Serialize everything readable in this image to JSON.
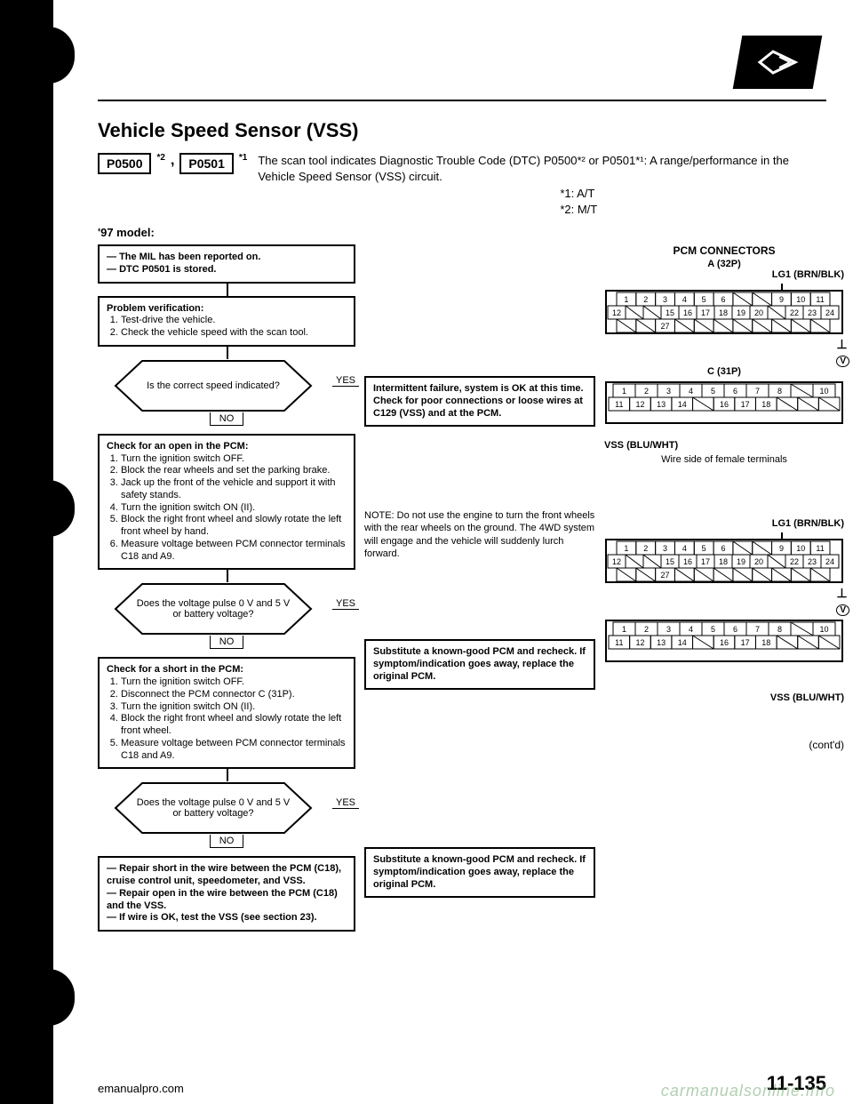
{
  "header": {
    "title": "Vehicle Speed Sensor (VSS)",
    "dtc_codes": [
      "P0500",
      "P0501"
    ],
    "dtc_sup": [
      "*2",
      "*1"
    ],
    "description": "The scan tool indicates Diagnostic Trouble Code (DTC) P0500*² or P0501*¹: A range/performance in the Vehicle Speed Sensor (VSS) circuit.",
    "footnotes": [
      "*1: A/T",
      "*2: M/T"
    ],
    "model": "'97 model:"
  },
  "flow": {
    "start": {
      "lines": [
        "The MIL has been reported on.",
        "DTC P0501 is stored."
      ]
    },
    "problem_verification": {
      "title": "Problem verification:",
      "steps": [
        "Test-drive the vehicle.",
        "Check the vehicle speed with the scan tool."
      ]
    },
    "decision1": {
      "q": "Is the correct speed indicated?",
      "yes": "YES",
      "no": "NO"
    },
    "result1": "Intermittent failure, system is OK at this time. Check for poor connections or loose wires at C129 (VSS) and at the PCM.",
    "check_open": {
      "title": "Check for an open in the PCM:",
      "steps": [
        "Turn the ignition switch OFF.",
        "Block the rear wheels and set the parking brake.",
        "Jack up the front of the vehicle and support it with safety stands.",
        "Turn the ignition switch ON (II).",
        "Block the right front wheel and slowly rotate the left front wheel by hand.",
        "Measure voltage between PCM connector terminals C18 and A9."
      ]
    },
    "note": "NOTE: Do not use the engine to turn the front wheels with the rear wheels on the ground. The 4WD system will engage and the vehicle will suddenly lurch forward.",
    "decision2": {
      "q": "Does the voltage pulse 0 V and 5 V or battery voltage?",
      "yes": "YES",
      "no": "NO"
    },
    "result2": "Substitute a known-good PCM and recheck. If symptom/indication goes away, replace the original PCM.",
    "check_short": {
      "title": "Check for a short in the PCM:",
      "steps": [
        "Turn the ignition switch OFF.",
        "Disconnect the PCM connector C (31P).",
        "Turn the ignition switch ON (II).",
        "Block the right front wheel and slowly rotate the left front wheel.",
        "Measure voltage between PCM connector terminals C18 and A9."
      ]
    },
    "decision3": {
      "q": "Does the voltage pulse 0 V and 5 V or battery voltage?",
      "yes": "YES",
      "no": "NO"
    },
    "result3": "Substitute a known-good PCM and recheck. If symptom/indication goes away, replace the original PCM.",
    "final": {
      "lines": [
        "Repair short in the wire between the PCM (C18), cruise control unit, speedometer, and VSS.",
        "Repair open in the wire between the PCM (C18) and the VSS.",
        "If wire is OK, test the VSS (see section 23)."
      ]
    }
  },
  "connectors": {
    "header": "PCM CONNECTORS",
    "a": {
      "label": "A (32P)",
      "wire": "LG1 (BRN/BLK)",
      "row1": [
        1,
        2,
        3,
        4,
        5,
        6,
        null,
        null,
        9,
        10,
        11
      ],
      "row2": [
        12,
        null,
        null,
        15,
        16,
        17,
        18,
        19,
        20,
        null,
        22,
        23,
        24
      ],
      "row3": [
        null,
        null,
        27,
        null,
        null,
        null,
        null,
        null,
        null,
        null,
        null
      ]
    },
    "c": {
      "label": "C (31P)",
      "vss": "VSS (BLU/WHT)",
      "row1": [
        1,
        2,
        3,
        4,
        5,
        6,
        7,
        8,
        null,
        10
      ],
      "row2": [
        11,
        12,
        13,
        14,
        null,
        16,
        17,
        18,
        null,
        null,
        null
      ],
      "row3": [
        null,
        null,
        null,
        null,
        null,
        null,
        null,
        null,
        null,
        null
      ]
    },
    "caption": "Wire side of female terminals",
    "a2_wire": "LG1 (BRN/BLK)",
    "c2_vss": "VSS (BLU/WHT)"
  },
  "footer": {
    "left": "emanualpro.com",
    "contd": "(cont'd)",
    "page": "11-135",
    "watermark": "carmanualsonline.info"
  },
  "colors": {
    "text": "#000000",
    "bg": "#ffffff",
    "watermark": "rgba(100,160,100,0.5)"
  }
}
